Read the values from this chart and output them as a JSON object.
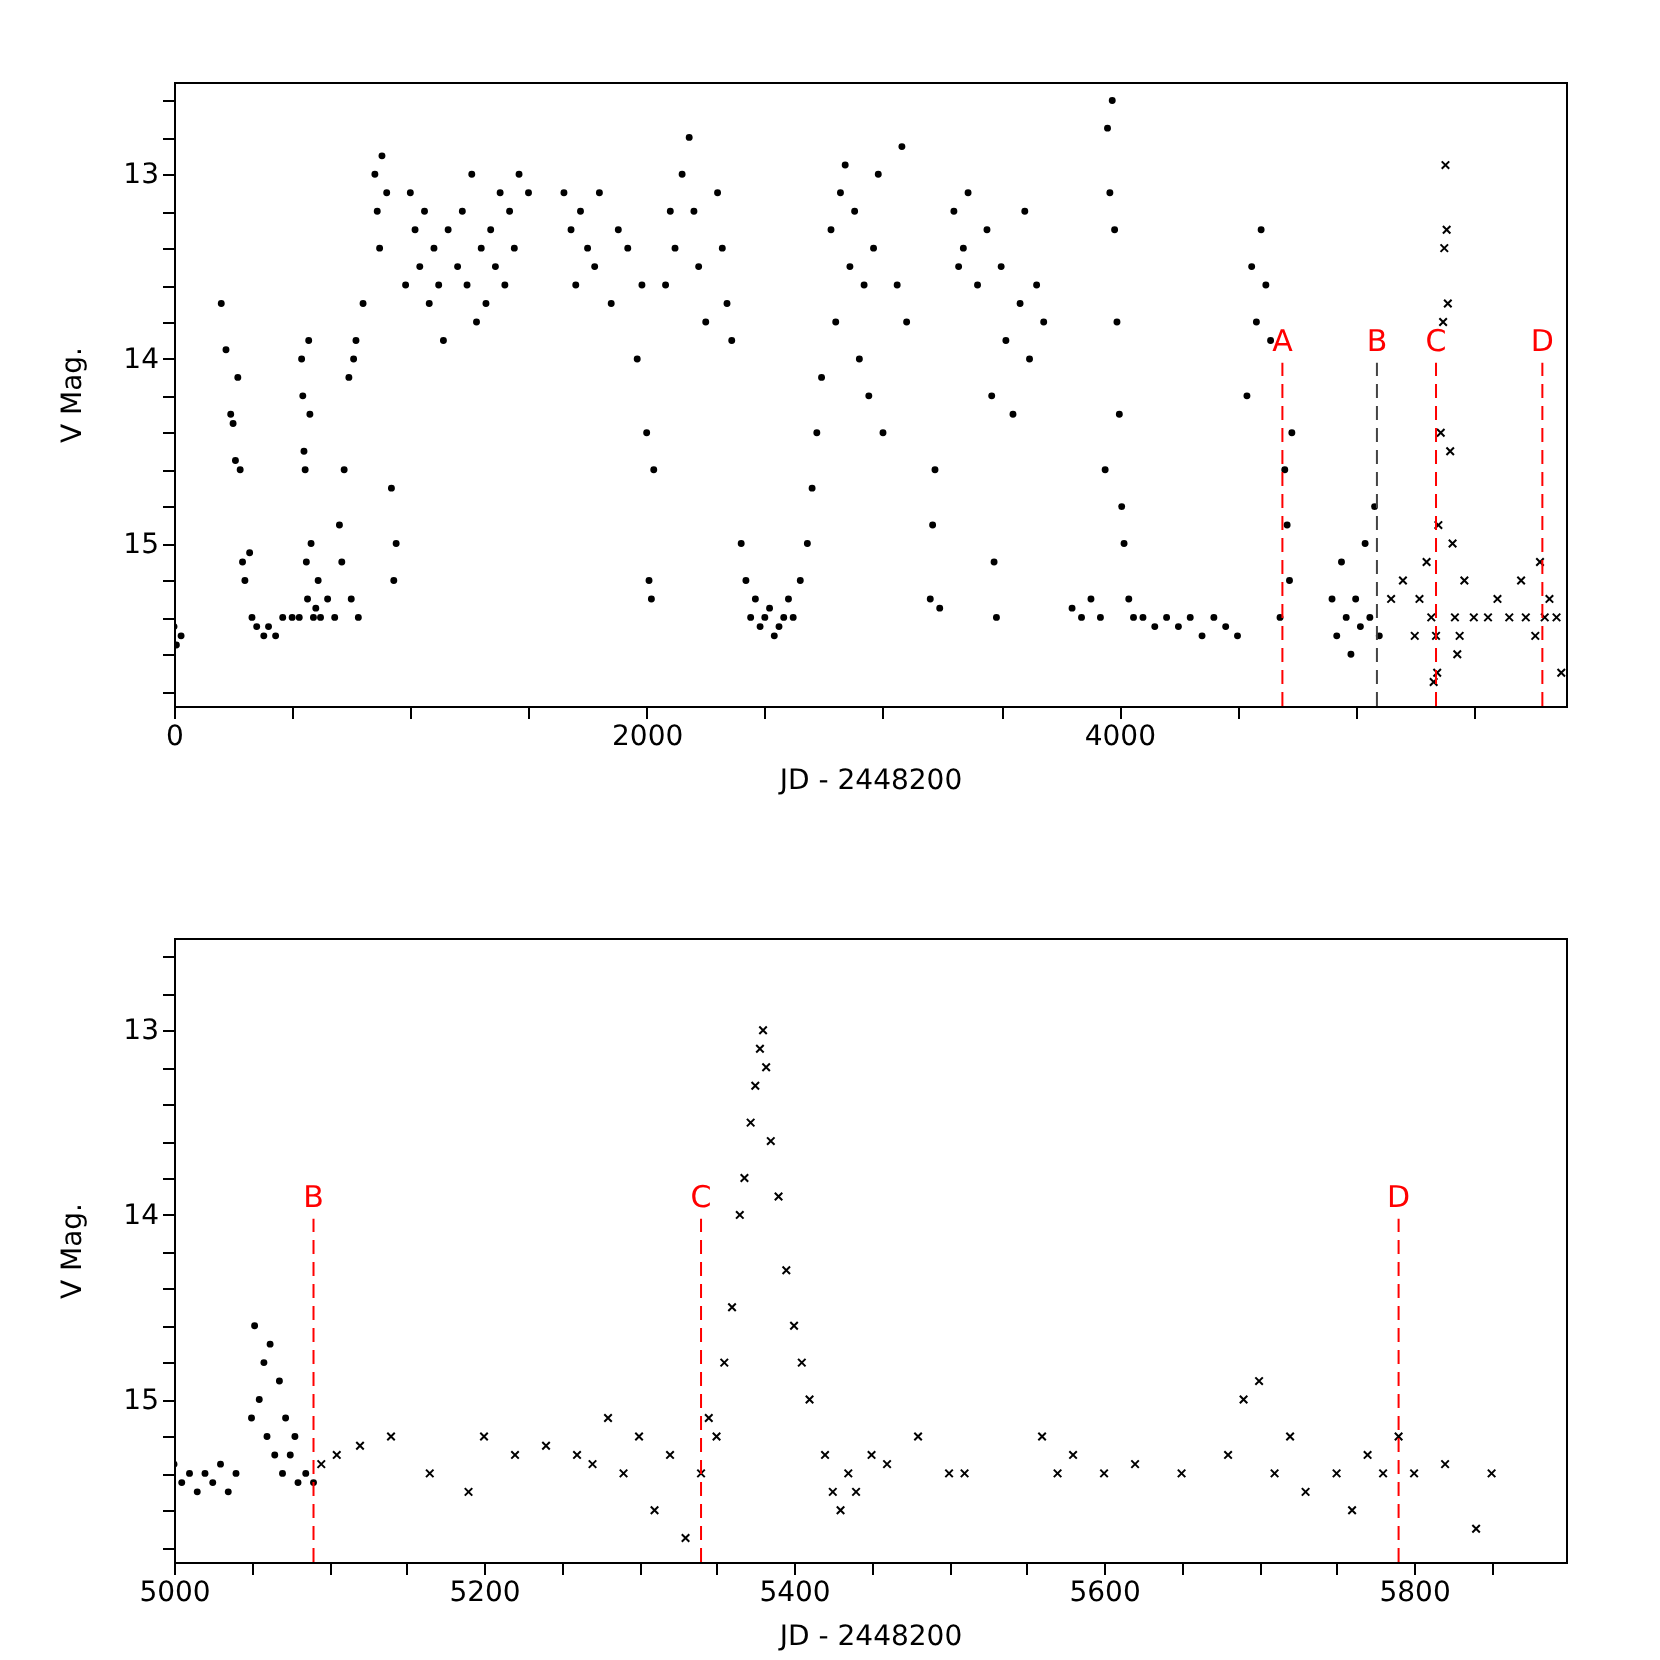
{
  "chart_data": [
    {
      "type": "scatter",
      "xlabel": "JD - 2448200",
      "ylabel": "V Mag.",
      "xlim": [
        0,
        5890
      ],
      "ylim": [
        15.88,
        12.5
      ],
      "xticks": [
        0,
        {
          "value": 500,
          "label": null
        },
        {
          "value": 1000,
          "label": null
        },
        {
          "value": 1500,
          "label": null
        },
        2000,
        {
          "value": 2500,
          "label": null
        },
        {
          "value": 3000,
          "label": null
        },
        {
          "value": 3500,
          "label": null
        },
        4000,
        {
          "value": 4500,
          "label": null
        },
        {
          "value": 5000,
          "label": null
        },
        {
          "value": 5500,
          "label": null
        }
      ],
      "yticks": [
        {
          "value": 12.6,
          "label": null
        },
        {
          "value": 12.8,
          "label": null
        },
        13,
        {
          "value": 13.2,
          "label": null
        },
        {
          "value": 13.4,
          "label": null
        },
        {
          "value": 13.6,
          "label": null
        },
        {
          "value": 13.8,
          "label": null
        },
        14,
        {
          "value": 14.2,
          "label": null
        },
        {
          "value": 14.4,
          "label": null
        },
        {
          "value": 14.6,
          "label": null
        },
        {
          "value": 14.8,
          "label": null
        },
        15,
        {
          "value": 15.2,
          "label": null
        },
        {
          "value": 15.4,
          "label": null
        },
        {
          "value": 15.6,
          "label": null
        },
        {
          "value": 15.8,
          "label": null
        }
      ],
      "series": [
        {
          "color": "#000000",
          "marker": "circle",
          "x": [
            0,
            10,
            30,
            200,
            220,
            240,
            250,
            260,
            270,
            280,
            290,
            300,
            320,
            330,
            350,
            380,
            400,
            430,
            460,
            500,
            530,
            540,
            545,
            550,
            555,
            560,
            565,
            570,
            575,
            580,
            590,
            600,
            610,
            620,
            650,
            680,
            700,
            710,
            720,
            740,
            750,
            760,
            770,
            780,
            800,
            850,
            860,
            870,
            880,
            900,
            920,
            930,
            940,
            980,
            1000,
            1020,
            1040,
            1060,
            1080,
            1100,
            1120,
            1140,
            1160,
            1200,
            1220,
            1240,
            1260,
            1280,
            1300,
            1320,
            1340,
            1360,
            1380,
            1400,
            1420,
            1440,
            1460,
            1500,
            1650,
            1680,
            1700,
            1720,
            1750,
            1780,
            1800,
            1850,
            1880,
            1920,
            1960,
            1980,
            2000,
            2010,
            2020,
            2030,
            2080,
            2100,
            2120,
            2150,
            2180,
            2200,
            2220,
            2250,
            2300,
            2320,
            2340,
            2360,
            2400,
            2420,
            2440,
            2460,
            2480,
            2500,
            2520,
            2540,
            2560,
            2580,
            2600,
            2620,
            2650,
            2680,
            2700,
            2720,
            2740,
            2780,
            2800,
            2820,
            2840,
            2860,
            2880,
            2900,
            2920,
            2940,
            2960,
            2980,
            3000,
            3060,
            3080,
            3100,
            3200,
            3210,
            3220,
            3240,
            3300,
            3320,
            3340,
            3360,
            3400,
            3440,
            3460,
            3470,
            3480,
            3500,
            3520,
            3550,
            3580,
            3600,
            3620,
            3650,
            3680,
            3800,
            3840,
            3880,
            3920,
            3940,
            3950,
            3960,
            3970,
            3980,
            3990,
            4000,
            4010,
            4020,
            4040,
            4060,
            4100,
            4150,
            4200,
            4250,
            4300,
            4350,
            4400,
            4450,
            4500,
            4540,
            4560,
            4580,
            4600,
            4620,
            4640,
            4680,
            4700,
            4710,
            4720,
            4730,
            4900,
            4920,
            4940,
            4960,
            4980,
            5000,
            5020,
            5040,
            5060,
            5080,
            5100
          ],
          "values": [
            15.45,
            15.55,
            15.5,
            13.7,
            13.95,
            14.3,
            14.35,
            14.55,
            14.1,
            14.6,
            15.1,
            15.2,
            15.05,
            15.4,
            15.45,
            15.5,
            15.45,
            15.5,
            15.4,
            15.4,
            15.4,
            14.0,
            14.2,
            14.5,
            14.6,
            15.1,
            15.3,
            13.9,
            14.3,
            15.0,
            15.4,
            15.35,
            15.2,
            15.4,
            15.3,
            15.4,
            14.9,
            15.1,
            14.6,
            14.1,
            15.3,
            14.0,
            13.9,
            15.4,
            13.7,
            13.0,
            13.2,
            13.4,
            12.9,
            13.1,
            14.7,
            15.2,
            15.0,
            13.6,
            13.1,
            13.3,
            13.5,
            13.2,
            13.7,
            13.4,
            13.6,
            13.9,
            13.3,
            13.5,
            13.2,
            13.6,
            13.0,
            13.8,
            13.4,
            13.7,
            13.3,
            13.5,
            13.1,
            13.6,
            13.2,
            13.4,
            13.0,
            13.1,
            13.1,
            13.3,
            13.6,
            13.2,
            13.4,
            13.5,
            13.1,
            13.7,
            13.3,
            13.4,
            14.0,
            13.6,
            14.4,
            15.2,
            15.3,
            14.6,
            13.6,
            13.2,
            13.4,
            13.0,
            12.8,
            13.2,
            13.5,
            13.8,
            13.1,
            13.4,
            13.7,
            13.9,
            15.0,
            15.2,
            15.4,
            15.3,
            15.45,
            15.4,
            15.35,
            15.5,
            15.45,
            15.4,
            15.3,
            15.4,
            15.2,
            15.0,
            14.7,
            14.4,
            14.1,
            13.3,
            13.8,
            13.1,
            12.95,
            13.5,
            13.2,
            14.0,
            13.6,
            14.2,
            13.4,
            13.0,
            14.4,
            13.6,
            12.85,
            13.8,
            15.3,
            14.9,
            14.6,
            15.35,
            13.2,
            13.5,
            13.4,
            13.1,
            13.6,
            13.3,
            14.2,
            15.1,
            15.4,
            13.5,
            13.9,
            14.3,
            13.7,
            13.2,
            14.0,
            13.6,
            13.8,
            15.35,
            15.4,
            15.3,
            15.4,
            14.6,
            12.75,
            13.1,
            12.6,
            13.3,
            13.8,
            14.3,
            14.8,
            15.0,
            15.3,
            15.4,
            15.4,
            15.45,
            15.4,
            15.45,
            15.4,
            15.5,
            15.4,
            15.45,
            15.5,
            14.2,
            13.5,
            13.8,
            13.3,
            13.6,
            13.9,
            15.4,
            14.6,
            14.9,
            15.2,
            14.4,
            15.3,
            15.5,
            15.1,
            15.4,
            15.6,
            15.3,
            15.45,
            15.0,
            15.4,
            14.8,
            15.5
          ]
        },
        {
          "color": "#000000",
          "marker": "cross",
          "x": [
            5150,
            5200,
            5250,
            5270,
            5300,
            5320,
            5330,
            5340,
            5345,
            5350,
            5360,
            5370,
            5375,
            5380,
            5385,
            5390,
            5400,
            5410,
            5420,
            5430,
            5440,
            5460,
            5500,
            5560,
            5600,
            5650,
            5700,
            5720,
            5760,
            5780,
            5800,
            5820,
            5850,
            5870
          ],
          "values": [
            15.3,
            15.2,
            15.5,
            15.3,
            15.1,
            15.4,
            15.75,
            15.5,
            15.7,
            14.9,
            14.4,
            13.8,
            13.4,
            12.95,
            13.3,
            13.7,
            14.5,
            15.0,
            15.4,
            15.6,
            15.5,
            15.2,
            15.4,
            15.4,
            15.3,
            15.4,
            15.2,
            15.4,
            15.5,
            15.1,
            15.4,
            15.3,
            15.4,
            15.7
          ]
        }
      ],
      "ref_lines": [
        {
          "axis": "x",
          "value": 4690,
          "label": "A",
          "color": "#ff0000",
          "line_style": "dashed"
        },
        {
          "axis": "x",
          "value": 5090,
          "label": "B",
          "color": "#444444",
          "line_style": "dashed"
        },
        {
          "axis": "x",
          "value": 5340,
          "label": "C",
          "color": "#ff0000",
          "line_style": "dashed"
        },
        {
          "axis": "x",
          "value": 5790,
          "label": "D",
          "color": "#ff0000",
          "line_style": "dashed"
        }
      ]
    },
    {
      "type": "scatter",
      "xlabel": "JD - 2448200",
      "ylabel": "V Mag.",
      "xlim": [
        5000,
        5898
      ],
      "ylim": [
        15.88,
        12.5
      ],
      "xticks": [
        5000,
        {
          "value": 5050,
          "label": null
        },
        {
          "value": 5100,
          "label": null
        },
        {
          "value": 5150,
          "label": null
        },
        5200,
        {
          "value": 5250,
          "label": null
        },
        {
          "value": 5300,
          "label": null
        },
        {
          "value": 5350,
          "label": null
        },
        5400,
        {
          "value": 5450,
          "label": null
        },
        {
          "value": 5500,
          "label": null
        },
        {
          "value": 5550,
          "label": null
        },
        5600,
        {
          "value": 5650,
          "label": null
        },
        {
          "value": 5700,
          "label": null
        },
        {
          "value": 5750,
          "label": null
        },
        5800,
        {
          "value": 5850,
          "label": null
        }
      ],
      "yticks": [
        {
          "value": 12.6,
          "label": null
        },
        {
          "value": 12.8,
          "label": null
        },
        13,
        {
          "value": 13.2,
          "label": null
        },
        {
          "value": 13.4,
          "label": null
        },
        {
          "value": 13.6,
          "label": null
        },
        {
          "value": 13.8,
          "label": null
        },
        14,
        {
          "value": 14.2,
          "label": null
        },
        {
          "value": 14.4,
          "label": null
        },
        {
          "value": 14.6,
          "label": null
        },
        {
          "value": 14.8,
          "label": null
        },
        15,
        {
          "value": 15.2,
          "label": null
        },
        {
          "value": 15.4,
          "label": null
        },
        {
          "value": 15.6,
          "label": null
        },
        {
          "value": 15.8,
          "label": null
        }
      ],
      "series": [
        {
          "color": "#000000",
          "marker": "circle",
          "x": [
            5000,
            5005,
            5010,
            5015,
            5020,
            5025,
            5030,
            5035,
            5040,
            5050,
            5052,
            5055,
            5058,
            5060,
            5062,
            5065,
            5068,
            5070,
            5072,
            5075,
            5078,
            5080,
            5085,
            5090
          ],
          "values": [
            15.35,
            15.45,
            15.4,
            15.5,
            15.4,
            15.45,
            15.35,
            15.5,
            15.4,
            15.1,
            14.6,
            15.0,
            14.8,
            15.2,
            14.7,
            15.3,
            14.9,
            15.4,
            15.1,
            15.3,
            15.2,
            15.45,
            15.4,
            15.45
          ]
        },
        {
          "color": "#000000",
          "marker": "cross",
          "x": [
            5095,
            5105,
            5120,
            5140,
            5165,
            5190,
            5200,
            5220,
            5240,
            5260,
            5270,
            5280,
            5290,
            5300,
            5310,
            5320,
            5330,
            5340,
            5345,
            5350,
            5355,
            5360,
            5365,
            5368,
            5372,
            5375,
            5378,
            5380,
            5382,
            5385,
            5390,
            5395,
            5400,
            5405,
            5410,
            5420,
            5425,
            5430,
            5435,
            5440,
            5450,
            5460,
            5480,
            5500,
            5510,
            5560,
            5570,
            5580,
            5600,
            5620,
            5650,
            5680,
            5690,
            5700,
            5710,
            5720,
            5730,
            5750,
            5760,
            5770,
            5780,
            5790,
            5800,
            5820,
            5840,
            5850
          ],
          "values": [
            15.35,
            15.3,
            15.25,
            15.2,
            15.4,
            15.5,
            15.2,
            15.3,
            15.25,
            15.3,
            15.35,
            15.1,
            15.4,
            15.2,
            15.6,
            15.3,
            15.75,
            15.4,
            15.1,
            15.2,
            14.8,
            14.5,
            14.0,
            13.8,
            13.5,
            13.3,
            13.1,
            13.0,
            13.2,
            13.6,
            13.9,
            14.3,
            14.6,
            14.8,
            15.0,
            15.3,
            15.5,
            15.6,
            15.4,
            15.5,
            15.3,
            15.35,
            15.2,
            15.4,
            15.4,
            15.2,
            15.4,
            15.3,
            15.4,
            15.35,
            15.4,
            15.3,
            15.0,
            14.9,
            15.4,
            15.2,
            15.5,
            15.4,
            15.6,
            15.3,
            15.4,
            15.2,
            15.4,
            15.35,
            15.7,
            15.4
          ]
        }
      ],
      "ref_lines": [
        {
          "axis": "x",
          "value": 5090,
          "label": "B",
          "color": "#ff0000",
          "line_style": "dashed"
        },
        {
          "axis": "x",
          "value": 5340,
          "label": "C",
          "color": "#ff0000",
          "line_style": "dashed"
        },
        {
          "axis": "x",
          "value": 5790,
          "label": "D",
          "color": "#ff0000",
          "line_style": "dashed"
        }
      ]
    }
  ]
}
